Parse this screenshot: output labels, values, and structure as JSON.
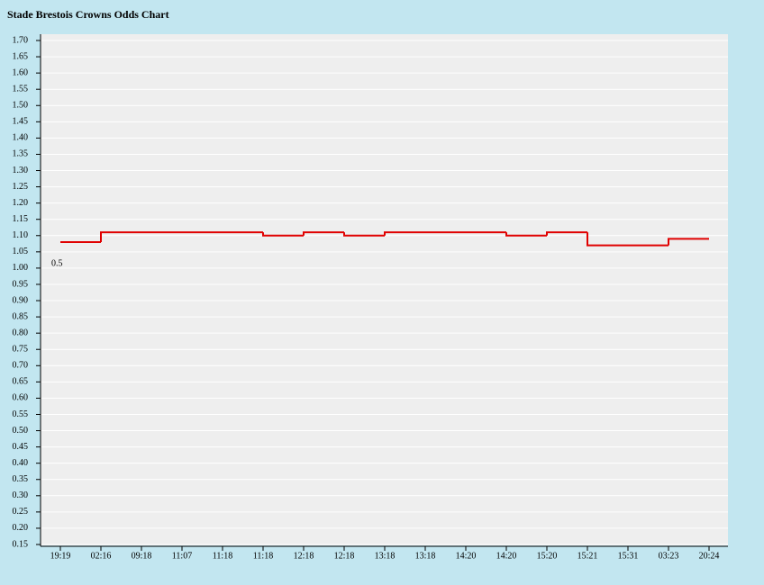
{
  "chart_data": {
    "type": "step",
    "title": "Stade Brestois Crowns Odds Chart",
    "annotation": "0.5",
    "categories": [
      "19:19",
      "02:16",
      "09:18",
      "11:07",
      "11:18",
      "11:18",
      "12:18",
      "12:18",
      "13:18",
      "13:18",
      "14:20",
      "14:20",
      "15:20",
      "15:21",
      "15:31",
      "03:23",
      "20:24"
    ],
    "series": [
      {
        "name": "Odds",
        "color": "#e00000",
        "values": [
          1.08,
          1.11,
          1.11,
          1.11,
          1.11,
          1.1,
          1.11,
          1.1,
          1.11,
          1.11,
          1.11,
          1.1,
          1.11,
          1.07,
          1.07,
          1.09,
          1.09
        ]
      }
    ],
    "ylim": [
      0.15,
      1.7
    ],
    "yticks": [
      {
        "value": 0.15,
        "label": "0.15"
      },
      {
        "value": 0.2,
        "label": "0.20"
      },
      {
        "value": 0.25,
        "label": "0.25"
      },
      {
        "value": 0.3,
        "label": "0.30"
      },
      {
        "value": 0.35,
        "label": "0.35"
      },
      {
        "value": 0.4,
        "label": "0.40"
      },
      {
        "value": 0.45,
        "label": "0.45"
      },
      {
        "value": 0.5,
        "label": "0.50"
      },
      {
        "value": 0.55,
        "label": "0.55"
      },
      {
        "value": 0.6,
        "label": "0.60"
      },
      {
        "value": 0.65,
        "label": "0.65"
      },
      {
        "value": 0.7,
        "label": "0.70"
      },
      {
        "value": 0.75,
        "label": "0.75"
      },
      {
        "value": 0.8,
        "label": "0.80"
      },
      {
        "value": 0.85,
        "label": "0.85"
      },
      {
        "value": 0.9,
        "label": "0.90"
      },
      {
        "value": 0.95,
        "label": "0.95"
      },
      {
        "value": 1.0,
        "label": "1.00"
      },
      {
        "value": 1.05,
        "label": "1.05"
      },
      {
        "value": 1.1,
        "label": "1.10"
      },
      {
        "value": 1.15,
        "label": "1.15"
      },
      {
        "value": 1.2,
        "label": "1.20"
      },
      {
        "value": 1.25,
        "label": "1.25"
      },
      {
        "value": 1.3,
        "label": "1.30"
      },
      {
        "value": 1.35,
        "label": "1.35"
      },
      {
        "value": 1.4,
        "label": "1.40"
      },
      {
        "value": 1.45,
        "label": "1.45"
      },
      {
        "value": 1.5,
        "label": "1.50"
      },
      {
        "value": 1.55,
        "label": "1.55"
      },
      {
        "value": 1.6,
        "label": "1.60"
      },
      {
        "value": 1.65,
        "label": "1.65"
      },
      {
        "value": 1.7,
        "label": "1.70"
      }
    ],
    "grid": true
  }
}
